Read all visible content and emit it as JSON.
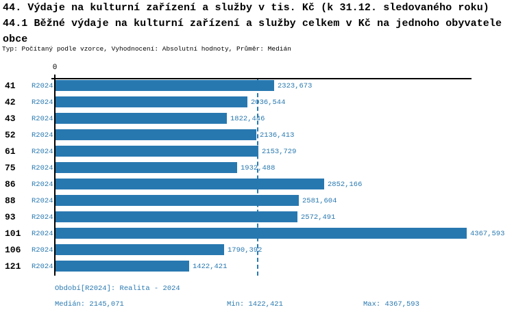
{
  "header": {
    "title_line1": "44. Výdaje na kulturní zařízení a služby v tis. Kč (k 31.12. sledovaného roku)",
    "title_line2": "44.1 Běžné výdaje na kulturní zařízení a služby celkem v Kč na jednoho obyvatele",
    "title_line3": "obce",
    "subtitle": "Typ: Počítaný podle vzorce, Vyhodnocení: Absolutní hodnoty, Průměr: Medián"
  },
  "chart_data": {
    "type": "bar",
    "orientation": "horizontal",
    "title": "44.1 Běžné výdaje na kulturní zařízení a služby celkem v Kč na jednoho obyvatele obce",
    "categories": [
      "41",
      "42",
      "43",
      "52",
      "61",
      "75",
      "86",
      "88",
      "93",
      "101",
      "106",
      "121"
    ],
    "series": [
      {
        "name": "R2024",
        "values": [
          2323.673,
          2036.544,
          1822.446,
          2136.413,
          2153.729,
          1932.488,
          2852.166,
          2581.604,
          2572.491,
          4367.593,
          1790.392,
          1422.421
        ],
        "value_labels": [
          "2323,673",
          "2036,544",
          "1822,446",
          "2136,413",
          "2153,729",
          "1932,488",
          "2852,166",
          "2581,604",
          "2572,491",
          "4367,593",
          "1790,392",
          "1422,421"
        ]
      }
    ],
    "x_axis": {
      "min": 0,
      "max_visible": 4420,
      "ticks": [
        {
          "value": 0,
          "label": "0"
        }
      ]
    },
    "median_line_value": 2145.071,
    "grid": false,
    "legend_position": "none",
    "colors": {
      "bar": "#2878b0",
      "value_text": "#2878b0",
      "median_line": "#2878b0",
      "axis": "#000000"
    }
  },
  "footer": {
    "period_label": "Období[R2024]: Realita - 2024",
    "median_label": "Medián: 2145,071",
    "min_label": "Min: 1422,421",
    "max_label": "Max: 4367,593"
  }
}
